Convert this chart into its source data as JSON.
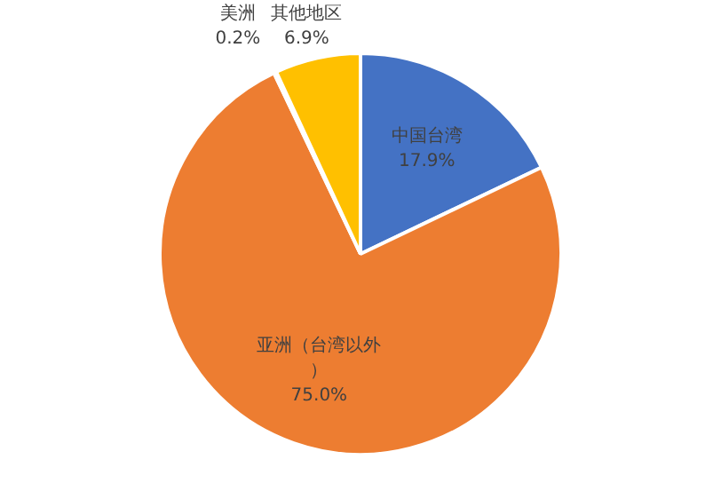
{
  "chart_data": {
    "type": "pie",
    "categories": [
      "中国台湾",
      "亚洲（台湾以外）",
      "美洲",
      "其他地区"
    ],
    "values": [
      17.9,
      75.0,
      0.2,
      6.9
    ],
    "value_labels": [
      "17.9%",
      "75.0%",
      "0.2%",
      "6.9%"
    ],
    "colors": [
      "#4472c4",
      "#ed7d31",
      "#a5a5a5",
      "#ffc000"
    ],
    "legend": false
  }
}
